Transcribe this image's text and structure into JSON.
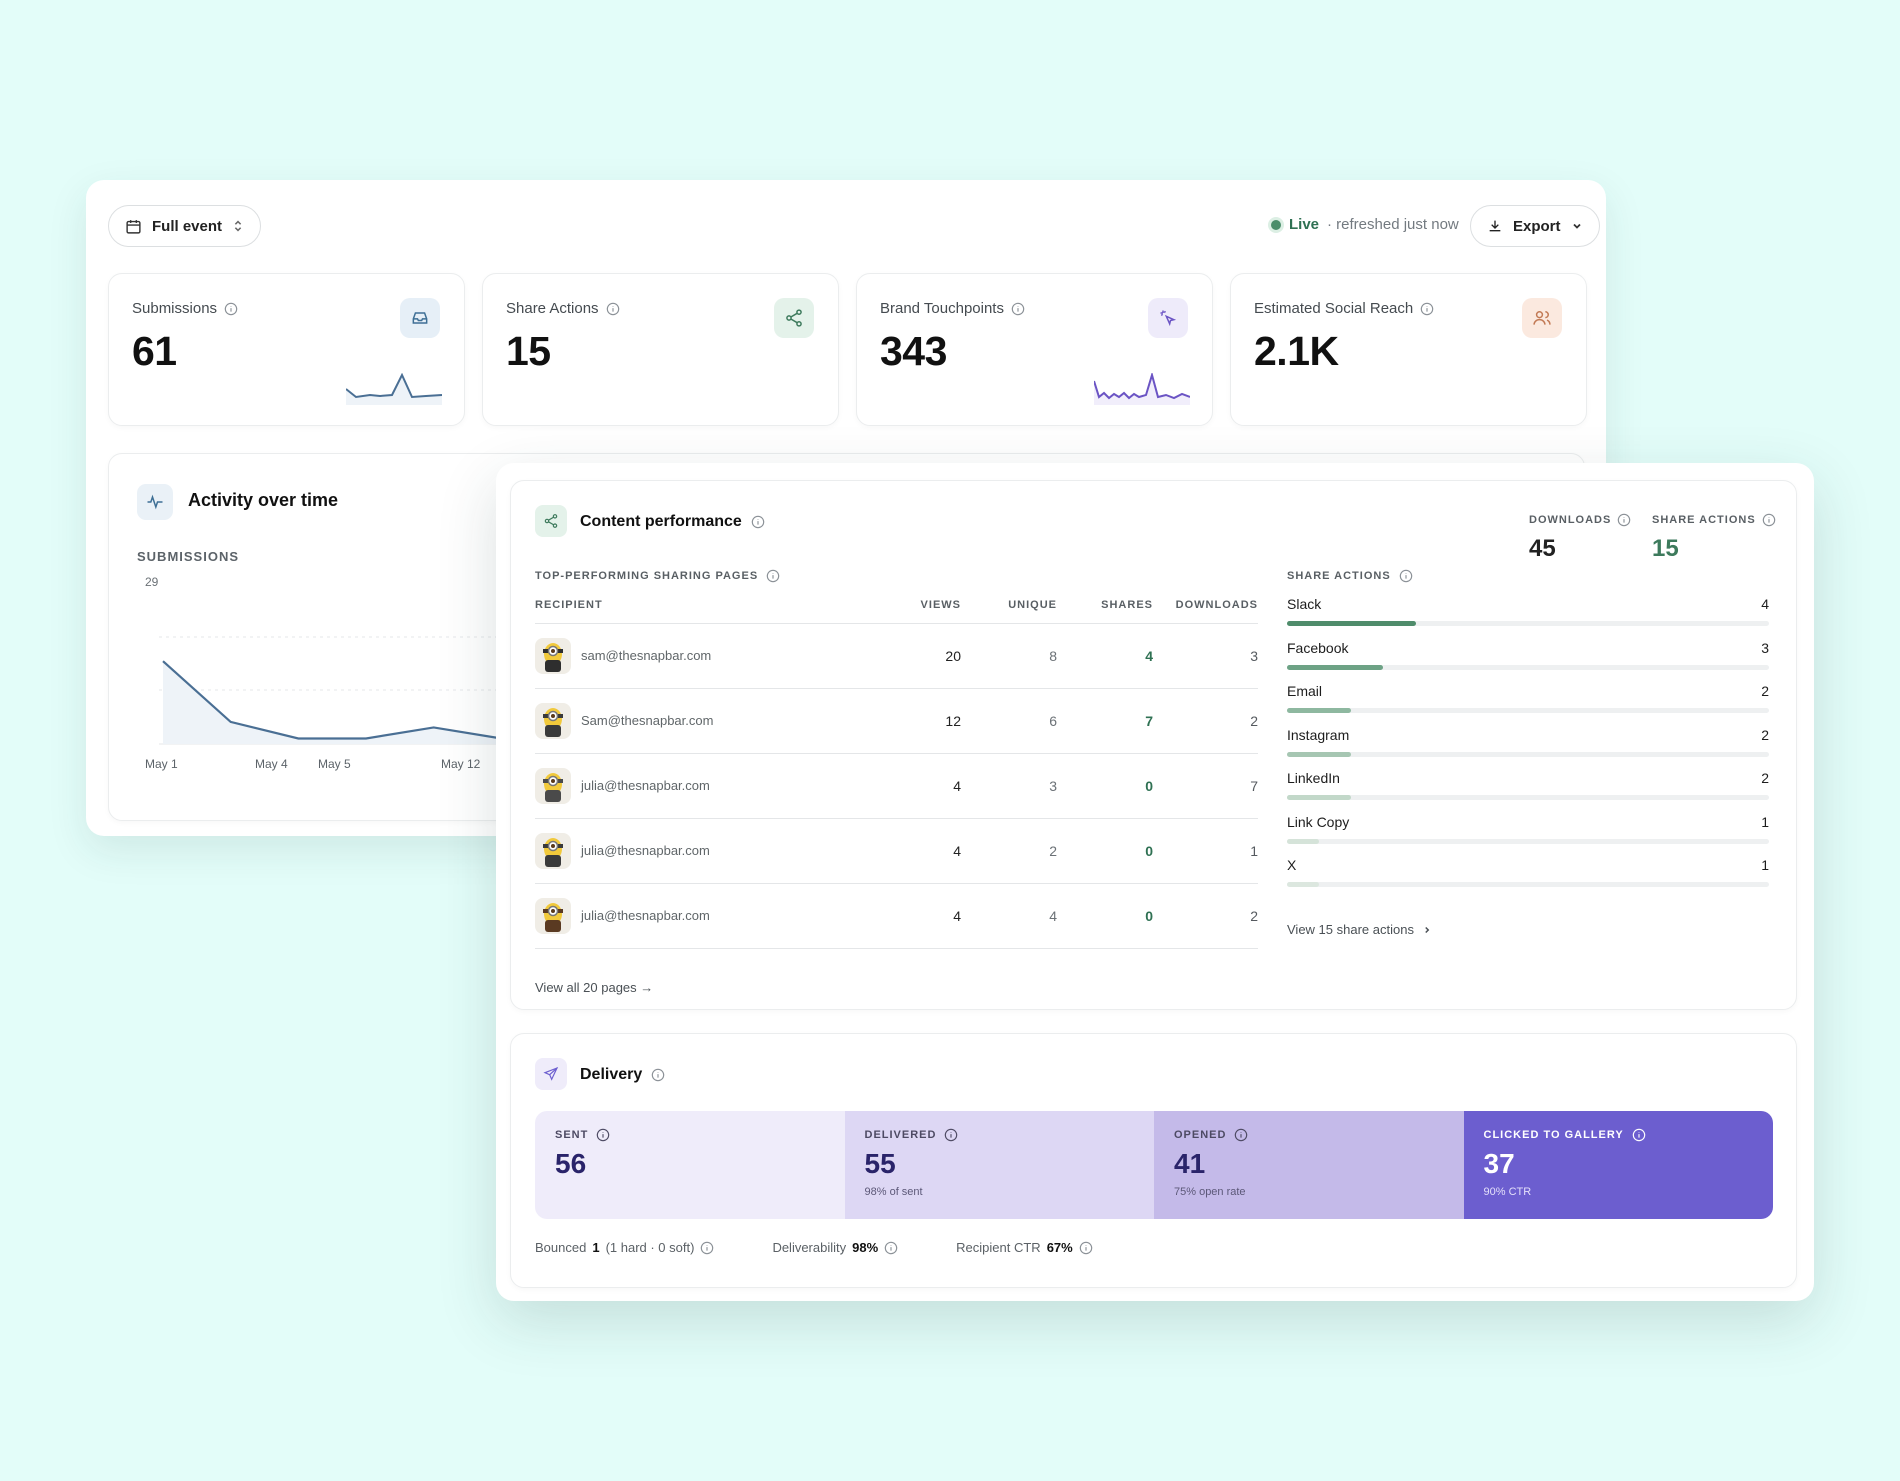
{
  "toolbar": {
    "date_filter": "Full event",
    "live_label": "Live",
    "refresh_text": "· refreshed just now",
    "export_label": "Export"
  },
  "metrics": [
    {
      "label": "Submissions",
      "value": "61",
      "icon": "inbox-icon",
      "color": "#3e6f95"
    },
    {
      "label": "Share Actions",
      "value": "15",
      "icon": "share-icon",
      "color": "#3d7a5c"
    },
    {
      "label": "Brand Touchpoints",
      "value": "343",
      "icon": "sparkle-cursor-icon",
      "color": "#6b54c4"
    },
    {
      "label": "Estimated Social Reach",
      "value": "2.1K",
      "icon": "users-icon",
      "color": "#c27a55"
    }
  ],
  "activity": {
    "title": "Activity over time",
    "subtitle": "SUBMISSIONS",
    "chart_data": {
      "type": "line",
      "ylabel": "",
      "y_tick": "29",
      "x_ticks": [
        "May 1",
        "May 4",
        "May 5",
        "May 12"
      ],
      "x": [
        1,
        2,
        3,
        4,
        5,
        6,
        7
      ],
      "values": [
        15,
        4,
        1,
        1,
        3,
        1,
        1
      ],
      "color": "#4a6f94"
    }
  },
  "content": {
    "title": "Content performance",
    "downloads_label": "DOWNLOADS",
    "downloads_value": "45",
    "share_actions_label": "SHARE ACTIONS",
    "share_actions_value": "15",
    "pages_label": "TOP-PERFORMING SHARING PAGES",
    "columns": {
      "recipient": "RECIPIENT",
      "views": "VIEWS",
      "unique": "UNIQUE",
      "shares": "SHARES",
      "downloads": "DOWNLOADS"
    },
    "rows": [
      {
        "recipient": "sam@thesnapbar.com",
        "views": "20",
        "unique": "8",
        "shares": "4",
        "downloads": "3"
      },
      {
        "recipient": "Sam@thesnapbar.com",
        "views": "12",
        "unique": "6",
        "shares": "7",
        "downloads": "2"
      },
      {
        "recipient": "julia@thesnapbar.com",
        "views": "4",
        "unique": "3",
        "shares": "0",
        "downloads": "7"
      },
      {
        "recipient": "julia@thesnapbar.com",
        "views": "4",
        "unique": "2",
        "shares": "0",
        "downloads": "1"
      },
      {
        "recipient": "julia@thesnapbar.com",
        "views": "4",
        "unique": "4",
        "shares": "0",
        "downloads": "2"
      }
    ],
    "view_pages": "View all 20 pages →",
    "share_label": "SHARE ACTIONS",
    "share_max": 15,
    "share_actions": [
      {
        "name": "Slack",
        "count": "4",
        "value": 4,
        "color": "#4f8c6b"
      },
      {
        "name": "Facebook",
        "count": "3",
        "value": 3,
        "color": "#6da285"
      },
      {
        "name": "Email",
        "count": "2",
        "value": 2,
        "color": "#8eb8a0"
      },
      {
        "name": "Instagram",
        "count": "2",
        "value": 2,
        "color": "#a6c6b2"
      },
      {
        "name": "LinkedIn",
        "count": "2",
        "value": 2,
        "color": "#c2d8c9"
      },
      {
        "name": "Link Copy",
        "count": "1",
        "value": 1,
        "color": "#d5e3d9"
      },
      {
        "name": "X",
        "count": "1",
        "value": 1,
        "color": "#dce7df"
      }
    ],
    "view_share": "View 15 share actions"
  },
  "delivery": {
    "title": "Delivery",
    "stages": [
      {
        "label": "SENT",
        "value": "56",
        "note": ""
      },
      {
        "label": "DELIVERED",
        "value": "55",
        "note": "98% of sent"
      },
      {
        "label": "OPENED",
        "value": "41",
        "note": "75% open rate"
      },
      {
        "label": "CLICKED TO GALLERY",
        "value": "37",
        "note": "90% CTR"
      }
    ],
    "bounced_label": "Bounced",
    "bounced_value": "1",
    "bounced_detail": "(1 hard · 0 soft)",
    "deliverability_label": "Deliverability",
    "deliverability_value": "98%",
    "ctr_label": "Recipient CTR",
    "ctr_value": "67%"
  }
}
